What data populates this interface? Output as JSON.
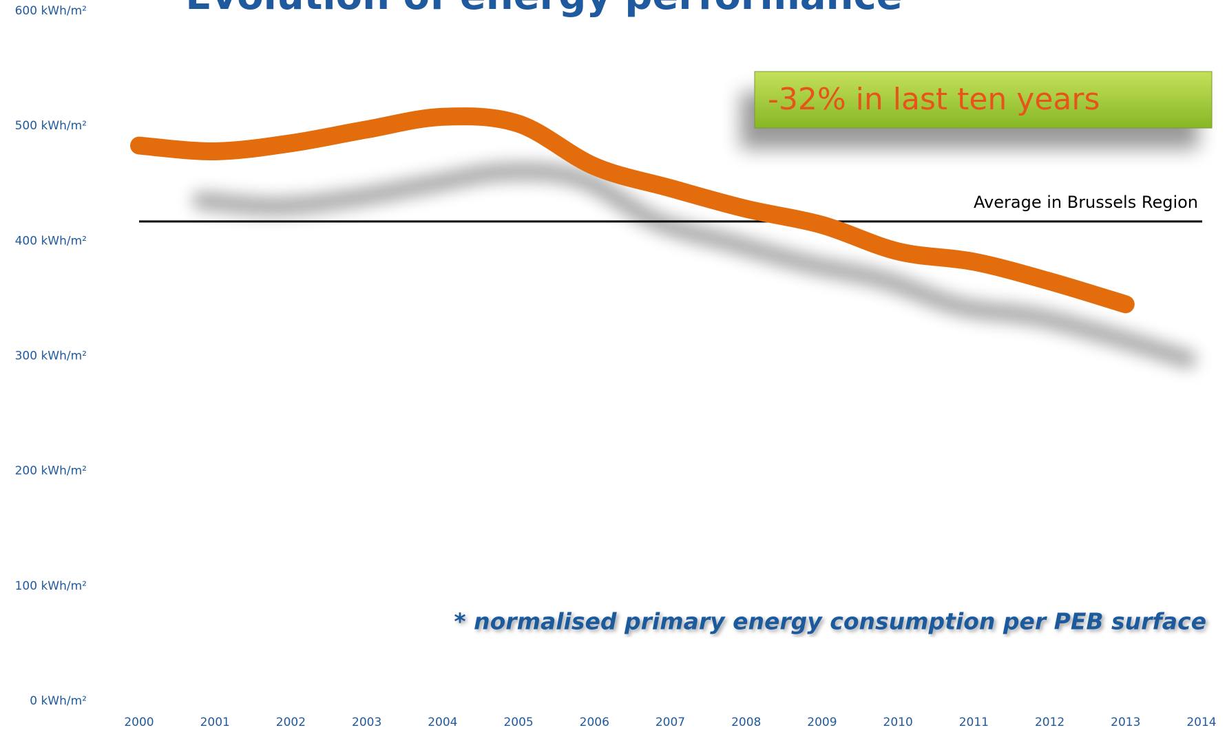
{
  "chart_data": {
    "type": "line",
    "title": "Evolution of energy performance",
    "categories": [
      "2000",
      "2001",
      "2002",
      "2003",
      "2004",
      "2005",
      "2006",
      "2007",
      "2008",
      "2009",
      "2010",
      "2011",
      "2012",
      "2013",
      "2014"
    ],
    "series": [
      {
        "name": "Energy performance",
        "color": "#e36c0a",
        "values": [
          483,
          478,
          485,
          497,
          508,
          502,
          465,
          446,
          428,
          414,
          391,
          382,
          365,
          345,
          null
        ]
      }
    ],
    "ylim": [
      0,
      600
    ],
    "yticks": [
      {
        "value": 0,
        "label": "0 kWh/m²"
      },
      {
        "value": 100,
        "label": "100 kWh/m²"
      },
      {
        "value": 200,
        "label": "200 kWh/m²"
      },
      {
        "value": 300,
        "label": "300 kWh/m²"
      },
      {
        "value": 400,
        "label": "400 kWh/m²"
      },
      {
        "value": 500,
        "label": "500 kWh/m²"
      },
      {
        "value": 600,
        "label": "600 kWh/m²"
      }
    ],
    "reference_line": {
      "label": "Average in Brussels Region",
      "value": 417,
      "color": "#000000"
    },
    "annotations": {
      "callout": "-32% in last ten years",
      "footnote": "* normalised primary energy consumption per PEB surface"
    },
    "grid": false
  }
}
